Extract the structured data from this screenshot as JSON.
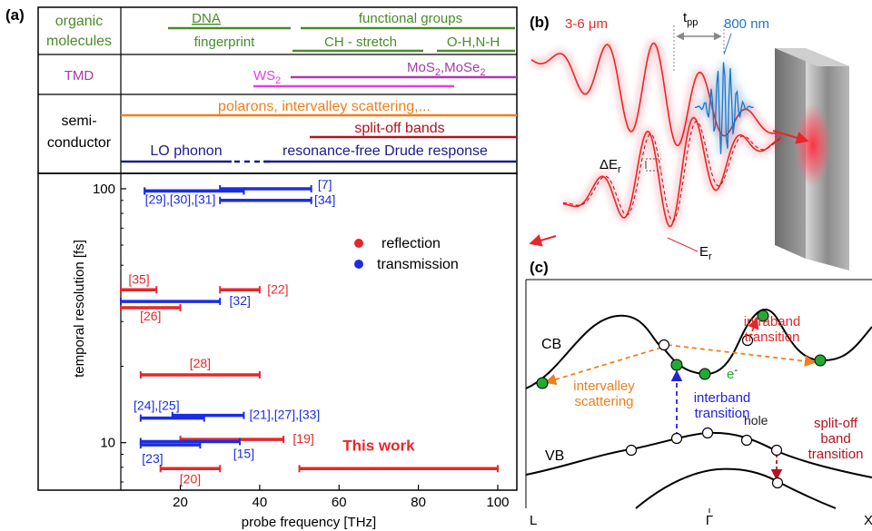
{
  "panel_labels": {
    "a": "(a)",
    "b": "(b)",
    "c": "(c)"
  },
  "table": {
    "organic_label_1": "organic",
    "organic_label_2": "molecules",
    "tmd_label": "TMD",
    "semi_label_1": "semi-",
    "semi_label_2": "conductor",
    "dna": "DNA",
    "fingerprint": "fingerprint",
    "functional_groups": "functional groups",
    "ch_stretch": "CH - stretch",
    "oh_nh": "O-H,N-H",
    "ws2_base": "WS",
    "ws2_sub": "2",
    "mos2_base": "MoS",
    "mos2_sub": "2",
    "mose2_base": ",MoSe",
    "mose2_sub": "2",
    "polarons": "polarons, intervalley scattering,...",
    "split_off": "split-off bands",
    "lo_phonon": "LO phonon",
    "drude": "resonance-free Drude response"
  },
  "colors": {
    "organic": "#4a8a2a",
    "tmd": "#a83aa8",
    "ws2": "#e43ee4",
    "polaron": "#f07f1e",
    "splitoff": "#b0141e",
    "semi_blue": "#1c1c8c",
    "reflection": "#e8262a",
    "transmission": "#1a2ee0",
    "cb_orange": "#f07f1e",
    "interband_blue": "#2222dd",
    "green_dot": "#22aa33",
    "pulse_blue": "#1f75c4"
  },
  "chart_data": {
    "type": "range",
    "xlabel": "probe frequency [THz]",
    "ylabel": "temporal resolution [fs]",
    "xlim": [
      5,
      105
    ],
    "ylim": [
      6.5,
      115
    ],
    "yscale": "log",
    "xticks": [
      20,
      40,
      60,
      80,
      100
    ],
    "ytick_labels": [
      {
        "value": 10,
        "label": "10"
      },
      {
        "value": 100,
        "label": "100"
      }
    ],
    "legend": [
      {
        "name": "reflection",
        "color": "#e8262a"
      },
      {
        "name": "transmission",
        "color": "#1a2ee0"
      }
    ],
    "legend_position": "upper-right",
    "series": [
      {
        "name": "reflection",
        "ranges": [
          {
            "label": "[35]",
            "x": [
              5,
              14
            ],
            "y": 40
          },
          {
            "label": "[22]",
            "x": [
              30,
              40
            ],
            "y": 40
          },
          {
            "label": "[26]",
            "x": [
              5,
              20
            ],
            "y": 34
          },
          {
            "label": "[28]",
            "x": [
              10,
              40
            ],
            "y": 18.5
          },
          {
            "label": "[19]",
            "x": [
              20,
              46
            ],
            "y": 10.3
          },
          {
            "label": "[20]",
            "x": [
              15,
              30
            ],
            "y": 7.9
          },
          {
            "label": "This work",
            "x": [
              50,
              100
            ],
            "y": 7.9
          }
        ]
      },
      {
        "name": "transmission",
        "ranges": [
          {
            "label": "[7]",
            "x": [
              30,
              53
            ],
            "y": 100
          },
          {
            "label": "",
            "x": [
              11,
              36
            ],
            "y": 98
          },
          {
            "label": "[29],[30],[31]",
            "x": [
              11,
              36
            ],
            "y": 98
          },
          {
            "label": "[34]",
            "x": [
              30,
              53
            ],
            "y": 90
          },
          {
            "label": "[32]",
            "x": [
              5,
              30
            ],
            "y": 36
          },
          {
            "label": "[24],[25]",
            "x": [
              10,
              26
            ],
            "y": 12.5
          },
          {
            "label": "[21],[27],[33]",
            "x": [
              18,
              36
            ],
            "y": 12.8
          },
          {
            "label": "[23]",
            "x": [
              10,
              25
            ],
            "y": 9.8
          },
          {
            "label": "[15]",
            "x": [
              10,
              35
            ],
            "y": 10.1
          }
        ]
      }
    ]
  },
  "panel_b": {
    "wavelength": "3-6 μm",
    "tpp_base": "t",
    "tpp_sub": "pp",
    "nm800": "800 nm",
    "delta_base": "ΔE",
    "delta_sub": "r",
    "er_base": "E",
    "er_sub": "r"
  },
  "panel_c": {
    "cb": "CB",
    "vb": "VB",
    "intraband_1": "intraband",
    "intraband_2": "transition",
    "electron": "e",
    "electron_sup": "-",
    "intervalley_1": "intervalley",
    "intervalley_2": "scattering",
    "interband_1": "interband",
    "interband_2": "transition",
    "hole": "hole",
    "splitoff_1": "split-off",
    "splitoff_2": "band",
    "splitoff_3": "transition",
    "k_left": "L",
    "k_mid": "Γ",
    "k_right": "X"
  }
}
